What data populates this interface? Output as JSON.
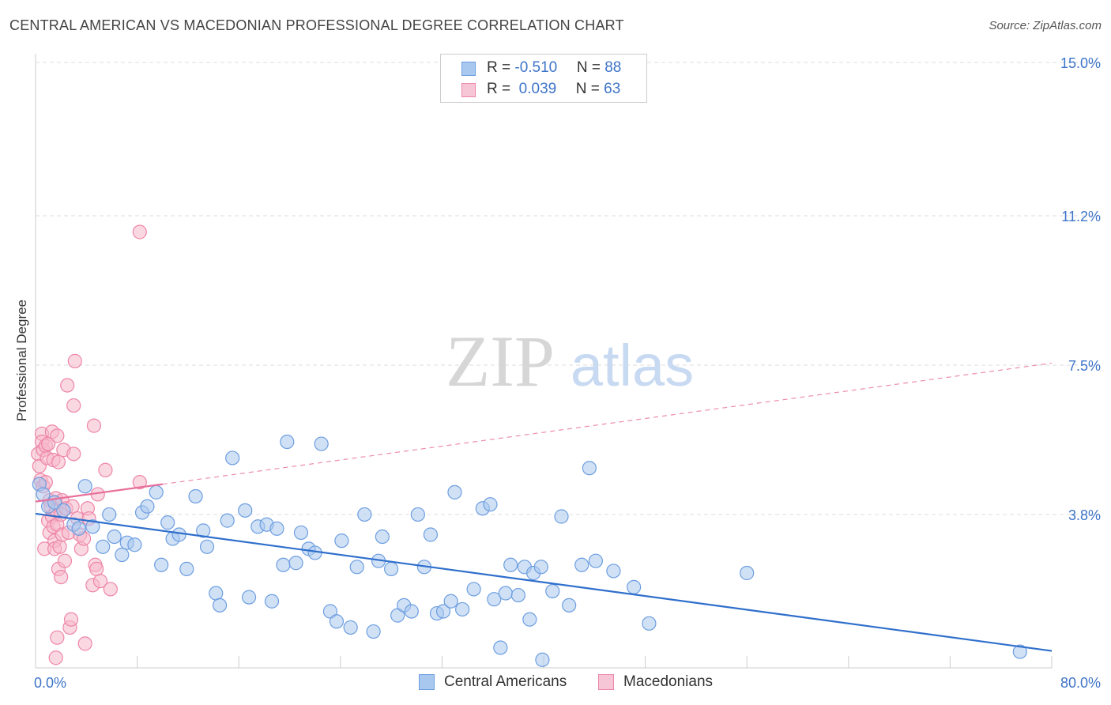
{
  "header": {
    "title": "CENTRAL AMERICAN VS MACEDONIAN PROFESSIONAL DEGREE CORRELATION CHART",
    "source": "Source: ZipAtlas.com"
  },
  "watermark": {
    "zip": "ZIP",
    "atlas": "atlas"
  },
  "legend": {
    "rows": [
      {
        "r_label": "R = ",
        "r_value": "-0.510",
        "n_label": "N = ",
        "n_value": "88"
      },
      {
        "r_label": "R = ",
        "r_value": " 0.039",
        "n_label": "N = ",
        "n_value": "63"
      }
    ]
  },
  "colors": {
    "blue_fill": "#a9c8ef",
    "blue_stroke": "#6d9ee0",
    "blue_line": "#2f6fcc",
    "pink_fill": "#f6b8cb",
    "pink_stroke": "#ee85a8",
    "pink_line": "#e8709a",
    "tick_text": "#3d74c8",
    "grid": "#dddddd"
  },
  "chart_data": {
    "type": "scatter",
    "ylabel": "Professional Degree",
    "xlim": [
      0,
      80
    ],
    "ylim": [
      0,
      15
    ],
    "x_tick_labels": [
      "0.0%",
      "80.0%"
    ],
    "y_ticks": [
      {
        "value": 3.8,
        "label": "3.8%"
      },
      {
        "value": 7.5,
        "label": "7.5%"
      },
      {
        "value": 11.2,
        "label": "11.2%"
      },
      {
        "value": 15.0,
        "label": "15.0%"
      }
    ],
    "grid": "horizontal-dashed",
    "legend_position": "top-center and bottom",
    "series": [
      {
        "name": "Central Americans",
        "color": "blue",
        "trend": {
          "x": [
            0,
            80
          ],
          "y": [
            3.82,
            0.42
          ],
          "style": "solid"
        },
        "points": [
          [
            0.3,
            4.55
          ],
          [
            0.6,
            4.3
          ],
          [
            1.0,
            4.0
          ],
          [
            1.5,
            4.1
          ],
          [
            2.2,
            3.9
          ],
          [
            3.0,
            3.55
          ],
          [
            3.4,
            3.45
          ],
          [
            3.9,
            4.5
          ],
          [
            4.5,
            3.5
          ],
          [
            5.3,
            3.0
          ],
          [
            5.8,
            3.8
          ],
          [
            6.2,
            3.25
          ],
          [
            6.8,
            2.8
          ],
          [
            7.2,
            3.1
          ],
          [
            7.8,
            3.05
          ],
          [
            8.4,
            3.85
          ],
          [
            8.8,
            4.0
          ],
          [
            9.5,
            4.35
          ],
          [
            9.9,
            2.55
          ],
          [
            10.4,
            3.6
          ],
          [
            10.8,
            3.2
          ],
          [
            11.3,
            3.3
          ],
          [
            11.9,
            2.45
          ],
          [
            12.6,
            4.25
          ],
          [
            13.2,
            3.4
          ],
          [
            13.5,
            3.0
          ],
          [
            14.2,
            1.85
          ],
          [
            14.5,
            1.55
          ],
          [
            15.1,
            3.65
          ],
          [
            15.5,
            5.2
          ],
          [
            16.5,
            3.9
          ],
          [
            16.8,
            1.75
          ],
          [
            17.5,
            3.5
          ],
          [
            18.2,
            3.55
          ],
          [
            18.6,
            1.65
          ],
          [
            19.0,
            3.45
          ],
          [
            19.5,
            2.55
          ],
          [
            19.8,
            5.6
          ],
          [
            20.5,
            2.6
          ],
          [
            20.9,
            3.35
          ],
          [
            21.5,
            2.95
          ],
          [
            22.0,
            2.85
          ],
          [
            22.5,
            5.55
          ],
          [
            23.2,
            1.4
          ],
          [
            23.7,
            1.15
          ],
          [
            24.1,
            3.15
          ],
          [
            24.8,
            1.0
          ],
          [
            25.3,
            2.5
          ],
          [
            25.9,
            3.8
          ],
          [
            26.6,
            0.9
          ],
          [
            27.0,
            2.65
          ],
          [
            27.3,
            3.25
          ],
          [
            28.0,
            2.45
          ],
          [
            28.5,
            1.3
          ],
          [
            29.0,
            1.55
          ],
          [
            29.6,
            1.4
          ],
          [
            30.1,
            3.8
          ],
          [
            30.6,
            2.5
          ],
          [
            31.1,
            3.3
          ],
          [
            31.6,
            1.35
          ],
          [
            32.1,
            1.4
          ],
          [
            32.7,
            1.65
          ],
          [
            33.0,
            4.35
          ],
          [
            33.6,
            1.45
          ],
          [
            34.5,
            1.95
          ],
          [
            35.2,
            3.95
          ],
          [
            35.8,
            4.05
          ],
          [
            36.1,
            1.7
          ],
          [
            36.6,
            0.5
          ],
          [
            37.0,
            1.85
          ],
          [
            37.4,
            2.55
          ],
          [
            38.0,
            1.8
          ],
          [
            38.5,
            2.5
          ],
          [
            38.9,
            1.2
          ],
          [
            39.2,
            2.35
          ],
          [
            39.8,
            2.5
          ],
          [
            40.7,
            1.9
          ],
          [
            41.4,
            3.75
          ],
          [
            42.0,
            1.55
          ],
          [
            43.0,
            2.55
          ],
          [
            43.6,
            4.95
          ],
          [
            44.1,
            2.65
          ],
          [
            45.5,
            2.4
          ],
          [
            47.1,
            2.0
          ],
          [
            48.3,
            1.1
          ],
          [
            56.0,
            2.35
          ],
          [
            39.9,
            0.2
          ],
          [
            77.5,
            0.4
          ]
        ]
      },
      {
        "name": "Macedonians",
        "color": "pink",
        "trend": {
          "x": [
            0,
            10
          ],
          "y": [
            4.12,
            4.55
          ],
          "style": "solid",
          "extended": {
            "x": [
              10,
              80
            ],
            "y": [
              4.55,
              7.55
            ],
            "style": "dashed"
          }
        },
        "points": [
          [
            0.2,
            5.3
          ],
          [
            0.3,
            5.0
          ],
          [
            0.4,
            4.65
          ],
          [
            0.5,
            5.8
          ],
          [
            0.5,
            5.6
          ],
          [
            0.6,
            4.5
          ],
          [
            0.6,
            5.4
          ],
          [
            0.7,
            2.95
          ],
          [
            0.8,
            4.6
          ],
          [
            0.8,
            5.5
          ],
          [
            0.9,
            5.2
          ],
          [
            1.0,
            5.55
          ],
          [
            1.0,
            3.65
          ],
          [
            1.1,
            3.35
          ],
          [
            1.1,
            4.15
          ],
          [
            1.2,
            4.0
          ],
          [
            1.3,
            3.75
          ],
          [
            1.3,
            5.85
          ],
          [
            1.4,
            5.15
          ],
          [
            1.4,
            3.5
          ],
          [
            1.5,
            3.15
          ],
          [
            1.5,
            2.95
          ],
          [
            1.6,
            4.2
          ],
          [
            1.6,
            3.9
          ],
          [
            1.7,
            5.75
          ],
          [
            1.7,
            3.55
          ],
          [
            1.8,
            2.45
          ],
          [
            1.8,
            5.1
          ],
          [
            1.9,
            3.0
          ],
          [
            2.0,
            3.8
          ],
          [
            2.0,
            2.25
          ],
          [
            2.1,
            3.3
          ],
          [
            2.1,
            4.15
          ],
          [
            2.2,
            5.4
          ],
          [
            2.3,
            2.65
          ],
          [
            2.4,
            3.95
          ],
          [
            2.5,
            7.0
          ],
          [
            2.6,
            3.35
          ],
          [
            2.7,
            1.0
          ],
          [
            2.8,
            1.2
          ],
          [
            2.9,
            4.0
          ],
          [
            3.0,
            6.5
          ],
          [
            3.0,
            5.3
          ],
          [
            3.1,
            7.6
          ],
          [
            3.3,
            3.7
          ],
          [
            3.5,
            3.3
          ],
          [
            3.6,
            2.95
          ],
          [
            3.8,
            3.2
          ],
          [
            3.9,
            0.6
          ],
          [
            4.1,
            3.95
          ],
          [
            4.2,
            3.7
          ],
          [
            4.5,
            2.05
          ],
          [
            4.6,
            6.0
          ],
          [
            4.7,
            2.55
          ],
          [
            4.8,
            2.45
          ],
          [
            4.9,
            4.3
          ],
          [
            5.1,
            2.15
          ],
          [
            5.5,
            4.9
          ],
          [
            5.9,
            1.95
          ],
          [
            8.2,
            10.8
          ],
          [
            8.2,
            4.6
          ],
          [
            1.6,
            0.25
          ],
          [
            1.7,
            0.75
          ]
        ]
      }
    ]
  },
  "bottom_legend": [
    {
      "label": "Central Americans",
      "color": "blue"
    },
    {
      "label": "Macedonians",
      "color": "pink"
    }
  ]
}
